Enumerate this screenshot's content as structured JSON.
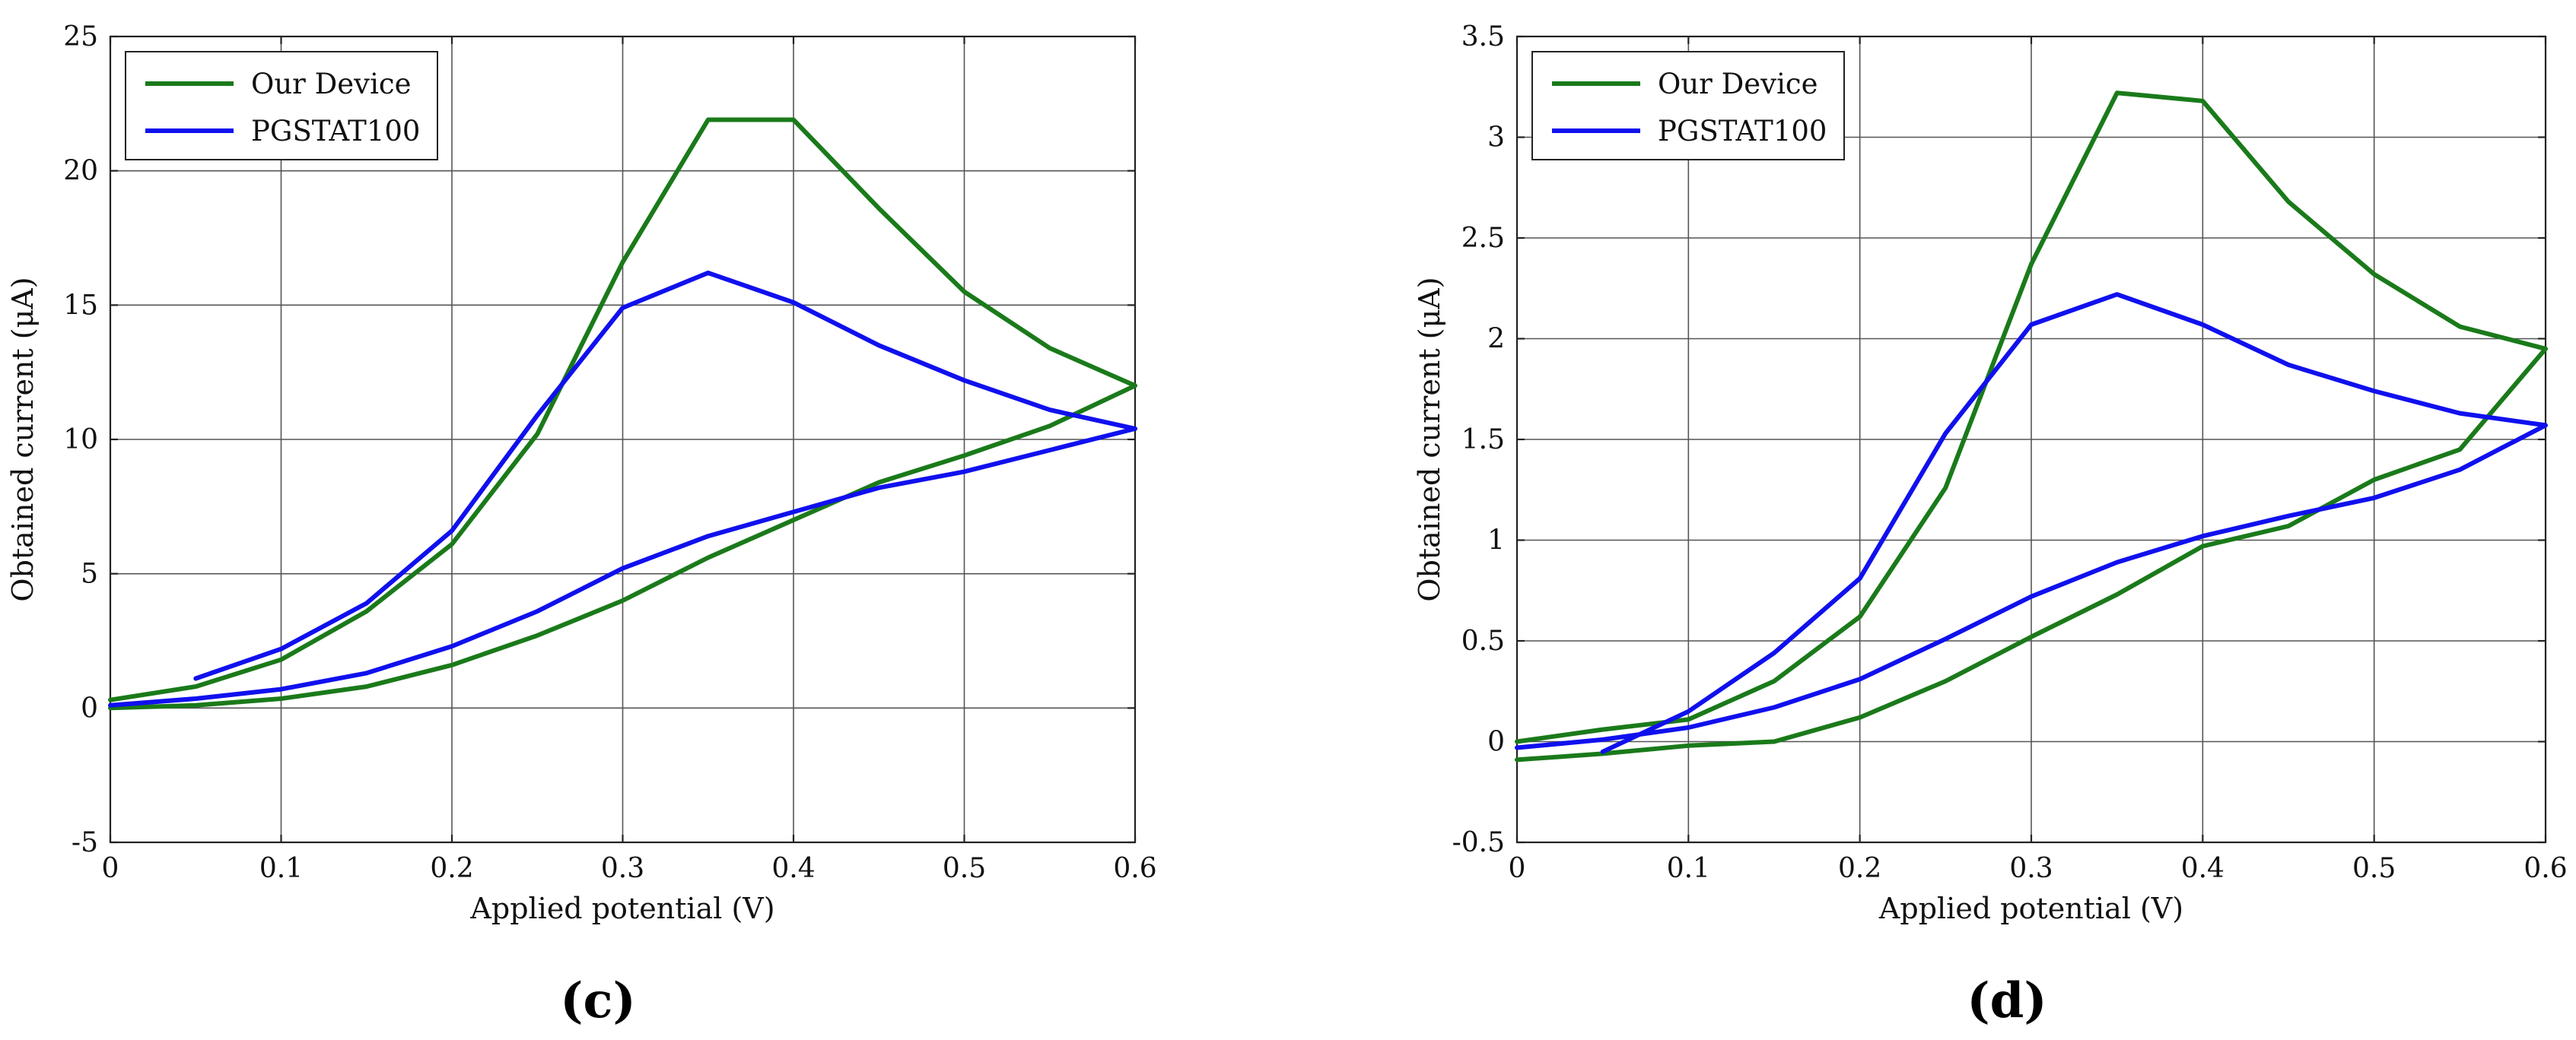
{
  "chart_data": [
    {
      "type": "line",
      "panel": "c",
      "caption": "(c)",
      "xlabel": "Applied potential (V)",
      "ylabel": "Obtained current (μA)",
      "xlim": [
        0,
        0.6
      ],
      "ylim": [
        -5,
        25
      ],
      "xticks": [
        0,
        0.1,
        0.2,
        0.3,
        0.4,
        0.5,
        0.6
      ],
      "xtick_labels": [
        "0",
        "0.1",
        "0.2",
        "0.3",
        "0.4",
        "0.5",
        "0.6"
      ],
      "yticks": [
        -5,
        0,
        5,
        10,
        15,
        20,
        25
      ],
      "ytick_labels": [
        "-5",
        "0",
        "5",
        "10",
        "15",
        "20",
        "25"
      ],
      "grid": true,
      "legend_position": "top-left",
      "series": [
        {
          "name": "Our Device",
          "color": "#1a7a1a",
          "x": [
            0,
            0.05,
            0.1,
            0.15,
            0.2,
            0.25,
            0.3,
            0.35,
            0.4,
            0.45,
            0.5,
            0.55,
            0.6,
            0.55,
            0.5,
            0.45,
            0.4,
            0.35,
            0.3,
            0.25,
            0.2,
            0.15,
            0.1,
            0.05,
            0
          ],
          "y": [
            0.0,
            0.1,
            0.35,
            0.8,
            1.6,
            2.7,
            4.0,
            5.6,
            7.0,
            8.4,
            9.4,
            10.5,
            12.0,
            13.4,
            15.5,
            18.6,
            21.9,
            21.9,
            16.6,
            10.2,
            6.1,
            3.6,
            1.8,
            0.8,
            0.3
          ]
        },
        {
          "name": "PGSTAT100",
          "color": "#1010ee",
          "x": [
            0.05,
            0.1,
            0.15,
            0.2,
            0.25,
            0.3,
            0.35,
            0.4,
            0.45,
            0.5,
            0.55,
            0.6,
            0.55,
            0.5,
            0.45,
            0.4,
            0.35,
            0.3,
            0.25,
            0.2,
            0.15,
            0.1,
            0.05,
            0
          ],
          "y": [
            1.1,
            2.2,
            3.9,
            6.6,
            10.9,
            14.9,
            16.2,
            15.1,
            13.5,
            12.2,
            11.1,
            10.4,
            9.6,
            8.8,
            8.2,
            7.3,
            6.4,
            5.2,
            3.6,
            2.3,
            1.3,
            0.7,
            0.35,
            0.1
          ]
        }
      ]
    },
    {
      "type": "line",
      "panel": "d",
      "caption": "(d)",
      "xlabel": "Applied potential (V)",
      "ylabel": "Obtained current (μA)",
      "xlim": [
        0,
        0.6
      ],
      "ylim": [
        -0.5,
        3.5
      ],
      "xticks": [
        0,
        0.1,
        0.2,
        0.3,
        0.4,
        0.5,
        0.6
      ],
      "xtick_labels": [
        "0",
        "0.1",
        "0.2",
        "0.3",
        "0.4",
        "0.5",
        "0.6"
      ],
      "yticks": [
        -0.5,
        0,
        0.5,
        1,
        1.5,
        2,
        2.5,
        3,
        3.5
      ],
      "ytick_labels": [
        "-0.5",
        "0",
        "0.5",
        "1",
        "1.5",
        "2",
        "2.5",
        "3",
        "3.5"
      ],
      "grid": true,
      "legend_position": "top-left",
      "series": [
        {
          "name": "Our Device",
          "color": "#1a7a1a",
          "x": [
            0,
            0.05,
            0.1,
            0.15,
            0.2,
            0.25,
            0.3,
            0.35,
            0.4,
            0.45,
            0.5,
            0.55,
            0.6,
            0.55,
            0.5,
            0.45,
            0.4,
            0.35,
            0.3,
            0.25,
            0.2,
            0.15,
            0.1,
            0.05,
            0
          ],
          "y": [
            -0.09,
            -0.06,
            -0.02,
            0.0,
            0.12,
            0.3,
            0.52,
            0.73,
            0.97,
            1.07,
            1.3,
            1.45,
            1.95,
            2.06,
            2.32,
            2.68,
            3.18,
            3.22,
            2.37,
            1.26,
            0.62,
            0.3,
            0.11,
            0.06,
            0.0
          ]
        },
        {
          "name": "PGSTAT100",
          "color": "#1010ee",
          "x": [
            0.05,
            0.1,
            0.15,
            0.2,
            0.25,
            0.3,
            0.35,
            0.4,
            0.45,
            0.5,
            0.55,
            0.6,
            0.55,
            0.5,
            0.45,
            0.4,
            0.35,
            0.3,
            0.25,
            0.2,
            0.15,
            0.1,
            0.05,
            0
          ],
          "y": [
            -0.05,
            0.15,
            0.44,
            0.81,
            1.53,
            2.07,
            2.22,
            2.07,
            1.87,
            1.74,
            1.63,
            1.57,
            1.35,
            1.21,
            1.12,
            1.02,
            0.89,
            0.72,
            0.51,
            0.31,
            0.17,
            0.07,
            0.01,
            -0.03
          ]
        }
      ]
    }
  ]
}
